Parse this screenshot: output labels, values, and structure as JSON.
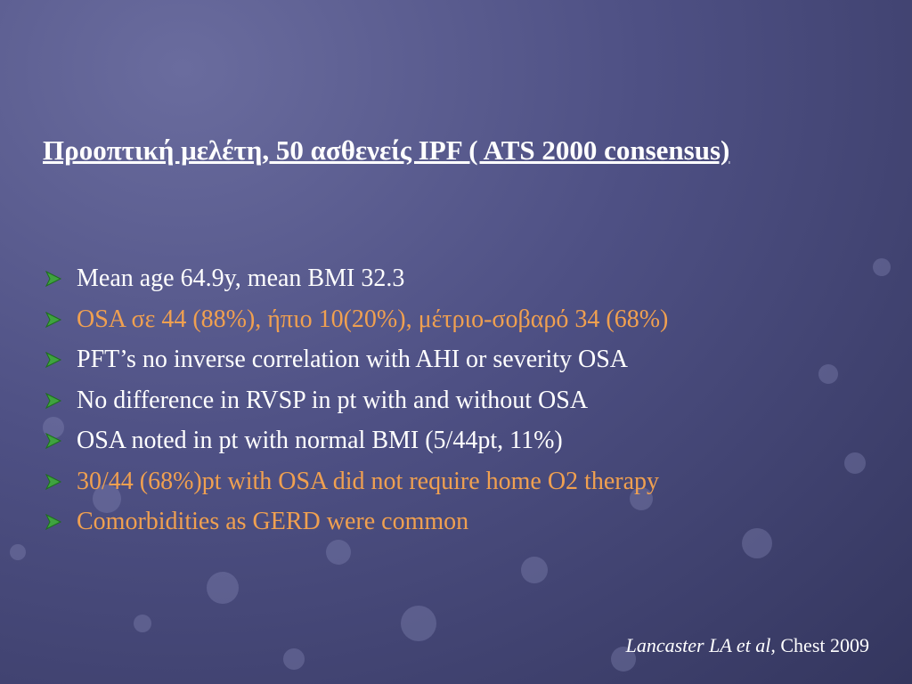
{
  "heading": "Προοπτική μελέτη, 50 ασθενείς IPF ( ATS 2000 consensus)",
  "bullets": [
    {
      "text": "Mean age 64.9y, mean BMI 32.3",
      "color": "#ffffff"
    },
    {
      "text": "OSA σε 44 (88%), ήπιο 10(20%), μέτριο-σοβαρό 34 (68%)",
      "color": "#f0a050"
    },
    {
      "text": "PFT’s no inverse correlation with AHI or severity OSA",
      "color": "#ffffff"
    },
    {
      "text": "No difference in RVSP in pt with and without OSA",
      "color": "#ffffff"
    },
    {
      "text": "OSA noted in pt with normal BMI (5/44pt, 11%)",
      "color": "#ffffff"
    },
    {
      "text": "30/44 (68%)pt with OSA did not require home O2 therapy",
      "color": "#f0a050"
    },
    {
      "text": "Comorbidities as GERD were common",
      "color": "#f0a050"
    }
  ],
  "citation": {
    "authors": "Lancaster LA et al,",
    "source": "Chest 2009"
  }
}
